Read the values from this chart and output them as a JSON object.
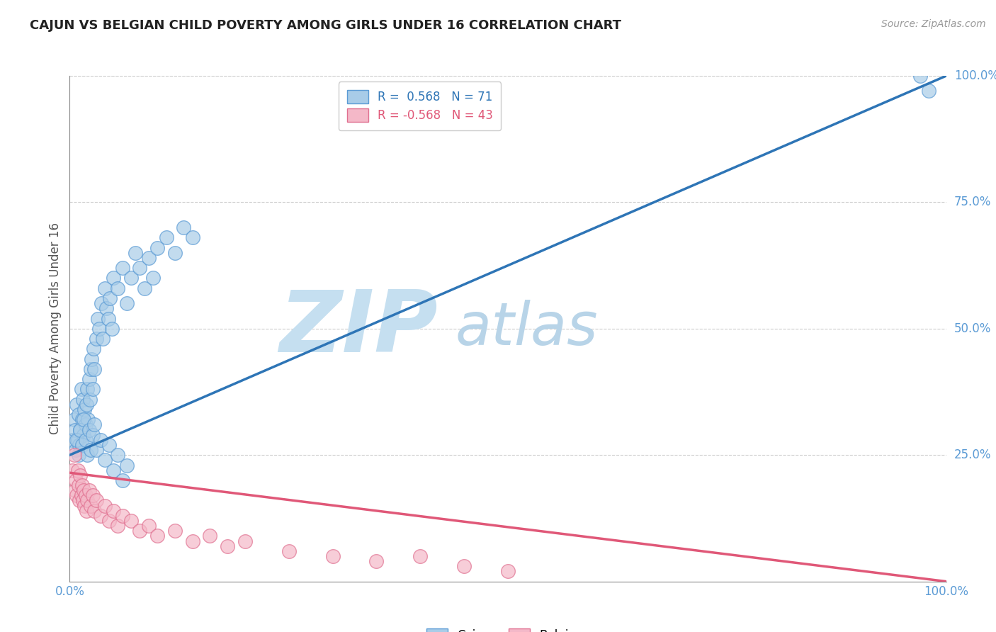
{
  "title": "CAJUN VS BELGIAN CHILD POVERTY AMONG GIRLS UNDER 16 CORRELATION CHART",
  "source_text": "Source: ZipAtlas.com",
  "ylabel": "Child Poverty Among Girls Under 16",
  "xlim": [
    0,
    1
  ],
  "ylim": [
    0,
    1
  ],
  "cajun_R": 0.568,
  "cajun_N": 71,
  "belgian_R": -0.568,
  "belgian_N": 43,
  "blue_scatter_color": "#a8cce8",
  "blue_scatter_edge": "#5b9bd5",
  "blue_line_color": "#2E75B6",
  "pink_scatter_color": "#f4b8c8",
  "pink_scatter_edge": "#e07090",
  "pink_line_color": "#e05878",
  "watermark_zip_color": "#c5dff0",
  "watermark_atlas_color": "#b8d4e8",
  "tick_color": "#5b9bd5",
  "grid_color": "#cccccc",
  "legend_blue_text": "#2E75B6",
  "legend_pink_text": "#e05878",
  "blue_line_x0": 0.0,
  "blue_line_y0": 0.25,
  "blue_line_x1": 1.0,
  "blue_line_y1": 1.0,
  "pink_line_x0": 0.0,
  "pink_line_y0": 0.215,
  "pink_line_x1": 1.0,
  "pink_line_y1": 0.0,
  "cajun_x": [
    0.003,
    0.005,
    0.006,
    0.007,
    0.008,
    0.009,
    0.01,
    0.011,
    0.012,
    0.013,
    0.014,
    0.015,
    0.016,
    0.017,
    0.018,
    0.019,
    0.02,
    0.021,
    0.022,
    0.023,
    0.024,
    0.025,
    0.026,
    0.027,
    0.028,
    0.03,
    0.032,
    0.034,
    0.036,
    0.038,
    0.04,
    0.042,
    0.044,
    0.046,
    0.048,
    0.05,
    0.055,
    0.06,
    0.065,
    0.07,
    0.075,
    0.08,
    0.085,
    0.09,
    0.095,
    0.1,
    0.11,
    0.12,
    0.13,
    0.14,
    0.008,
    0.01,
    0.012,
    0.014,
    0.016,
    0.018,
    0.02,
    0.022,
    0.024,
    0.026,
    0.028,
    0.03,
    0.035,
    0.04,
    0.045,
    0.05,
    0.055,
    0.06,
    0.065,
    0.97,
    0.98
  ],
  "cajun_y": [
    0.28,
    0.32,
    0.3,
    0.26,
    0.35,
    0.28,
    0.33,
    0.27,
    0.3,
    0.38,
    0.32,
    0.36,
    0.29,
    0.34,
    0.31,
    0.35,
    0.38,
    0.32,
    0.4,
    0.36,
    0.42,
    0.44,
    0.38,
    0.46,
    0.42,
    0.48,
    0.52,
    0.5,
    0.55,
    0.48,
    0.58,
    0.54,
    0.52,
    0.56,
    0.5,
    0.6,
    0.58,
    0.62,
    0.55,
    0.6,
    0.65,
    0.62,
    0.58,
    0.64,
    0.6,
    0.66,
    0.68,
    0.65,
    0.7,
    0.68,
    0.28,
    0.25,
    0.3,
    0.27,
    0.32,
    0.28,
    0.25,
    0.3,
    0.26,
    0.29,
    0.31,
    0.26,
    0.28,
    0.24,
    0.27,
    0.22,
    0.25,
    0.2,
    0.23,
    1.0,
    0.97
  ],
  "belgian_x": [
    0.003,
    0.005,
    0.006,
    0.007,
    0.008,
    0.009,
    0.01,
    0.011,
    0.012,
    0.013,
    0.014,
    0.015,
    0.016,
    0.017,
    0.018,
    0.019,
    0.02,
    0.022,
    0.024,
    0.026,
    0.028,
    0.03,
    0.035,
    0.04,
    0.045,
    0.05,
    0.055,
    0.06,
    0.07,
    0.08,
    0.09,
    0.1,
    0.12,
    0.14,
    0.16,
    0.18,
    0.2,
    0.25,
    0.3,
    0.35,
    0.4,
    0.45,
    0.5
  ],
  "belgian_y": [
    0.22,
    0.25,
    0.18,
    0.2,
    0.17,
    0.22,
    0.19,
    0.16,
    0.21,
    0.17,
    0.19,
    0.16,
    0.18,
    0.15,
    0.17,
    0.14,
    0.16,
    0.18,
    0.15,
    0.17,
    0.14,
    0.16,
    0.13,
    0.15,
    0.12,
    0.14,
    0.11,
    0.13,
    0.12,
    0.1,
    0.11,
    0.09,
    0.1,
    0.08,
    0.09,
    0.07,
    0.08,
    0.06,
    0.05,
    0.04,
    0.05,
    0.03,
    0.02
  ]
}
